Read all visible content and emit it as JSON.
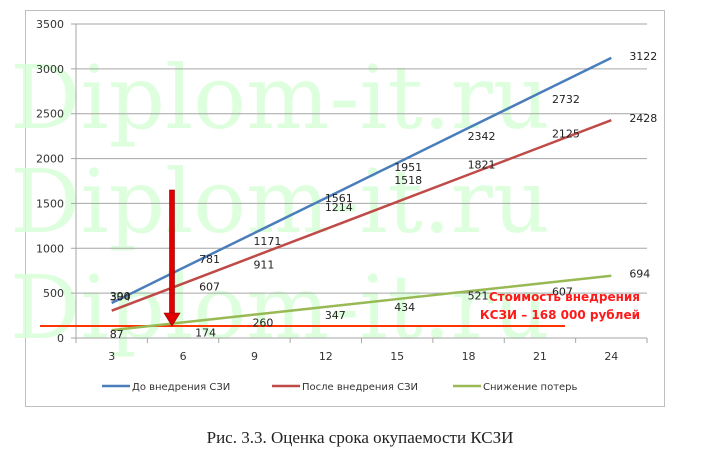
{
  "chart_data": {
    "type": "line",
    "title": "",
    "xlabel": "",
    "ylabel": "",
    "x": [
      3,
      6,
      9,
      12,
      15,
      18,
      21,
      24
    ],
    "categories": [
      "3",
      "6",
      "9",
      "12",
      "15",
      "18",
      "21",
      "24"
    ],
    "ylim": [
      0,
      3500
    ],
    "yticks": [
      0,
      500,
      1000,
      1500,
      2000,
      2500,
      3000,
      3500
    ],
    "grid": true,
    "legend_position": "bottom",
    "series": [
      {
        "name": "До внедрения  СЗИ",
        "color": "#4a7ebb",
        "values": [
          390,
          781,
          1171,
          1561,
          1951,
          2342,
          2732,
          3122
        ]
      },
      {
        "name": "После внедрения  СЗИ",
        "color": "#be4b48",
        "values": [
          304,
          607,
          911,
          1214,
          1518,
          1821,
          2125,
          2428
        ]
      },
      {
        "name": "Снижение  потерь",
        "color": "#98b954",
        "values": [
          87,
          174,
          260,
          347,
          434,
          521,
          607,
          694
        ]
      }
    ],
    "annotations": [
      {
        "type": "hline",
        "value": 168,
        "color": "#ff3300",
        "label": "Стоимость внедрения КСЗИ – 168 000 рублей"
      },
      {
        "type": "arrow",
        "x": 5.5,
        "color": "#e00000",
        "direction": "down"
      }
    ]
  },
  "annotation_text": {
    "line1": "Стоимость внедрения",
    "line2": "КСЗИ – 168 000 рублей"
  },
  "legend": [
    {
      "label": "До внедрения  СЗИ",
      "color": "#4a7ebb"
    },
    {
      "label": "После внедрения  СЗИ",
      "color": "#be4b48"
    },
    {
      "label": "Снижение  потерь",
      "color": "#98b954"
    }
  ],
  "caption": "Рис. 3.3. Оценка срока окупаемости КСЗИ",
  "watermark": "Diplom-it.ru"
}
